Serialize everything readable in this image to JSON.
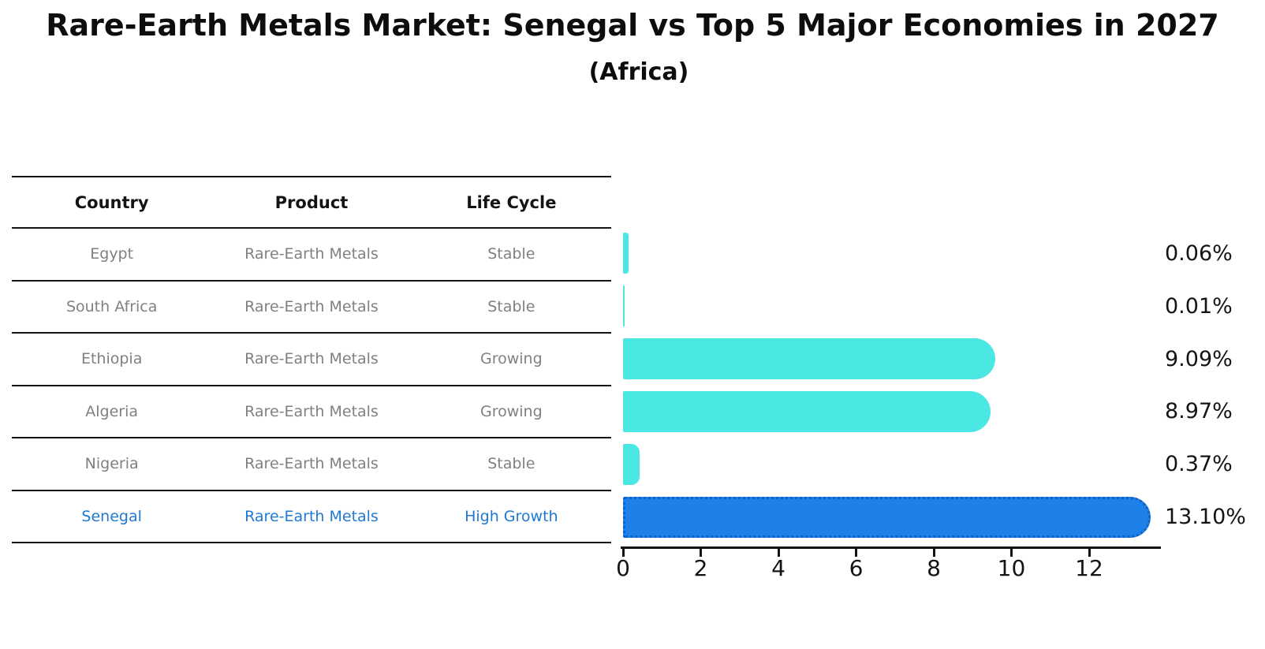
{
  "title": "Rare-Earth Metals Market: Senegal vs Top 5 Major Economies in 2027",
  "subtitle": "(Africa)",
  "table": {
    "headers": {
      "country": "Country",
      "product": "Product",
      "life_cycle": "Life Cycle"
    },
    "rows": [
      {
        "country": "Egypt",
        "product": "Rare-Earth Metals",
        "life_cycle": "Stable",
        "highlight": false
      },
      {
        "country": "South Africa",
        "product": "Rare-Earth Metals",
        "life_cycle": "Stable",
        "highlight": false
      },
      {
        "country": "Ethiopia",
        "product": "Rare-Earth Metals",
        "life_cycle": "Growing",
        "highlight": false
      },
      {
        "country": "Algeria",
        "product": "Rare-Earth Metals",
        "life_cycle": "Growing",
        "highlight": false
      },
      {
        "country": "Nigeria",
        "product": "Rare-Earth Metals",
        "life_cycle": "Stable",
        "highlight": false
      },
      {
        "country": "Senegal",
        "product": "Rare-Earth Metals",
        "life_cycle": "High Growth",
        "highlight": true
      }
    ]
  },
  "chart_data": {
    "type": "bar",
    "orientation": "horizontal",
    "title": "Rare-Earth Metals Market: Senegal vs Top 5 Major Economies in 2027 (Africa)",
    "categories": [
      "Egypt",
      "South Africa",
      "Ethiopia",
      "Algeria",
      "Nigeria",
      "Senegal"
    ],
    "values": [
      0.06,
      0.01,
      9.09,
      8.97,
      0.37,
      13.1
    ],
    "value_labels": [
      "0.06%",
      "0.01%",
      "9.09%",
      "8.97%",
      "0.37%",
      "13.10%"
    ],
    "x_ticks": [
      "0",
      "2",
      "4",
      "6",
      "8",
      "10",
      "12"
    ],
    "x_tick_values": [
      0,
      2,
      4,
      6,
      8,
      10,
      12
    ],
    "xlim": [
      0,
      13.8
    ],
    "xlabel": "",
    "ylabel": "",
    "grid": false,
    "legend_position": "none",
    "bar_color": "#4BE7E2",
    "highlight_bar_color": "#1E80E8",
    "highlight_edge_color": "#0E62C6",
    "highlight_index": 5
  },
  "colors": {
    "highlight_text": "#1E79D2",
    "cell_text": "#808080",
    "header_text": "#141414",
    "axis": "#141414"
  }
}
